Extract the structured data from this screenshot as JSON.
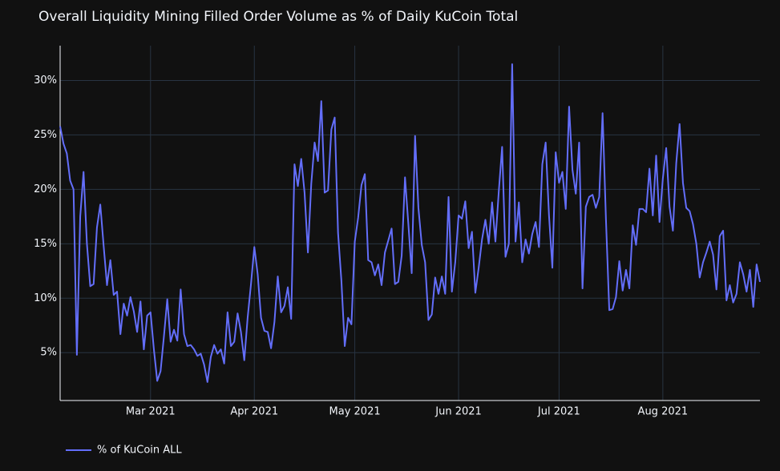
{
  "chart_data": {
    "type": "line",
    "title": "Overall Liquidity Mining Filled Order Volume as % of Daily KuCoin Total",
    "x": [
      "2021-02-02",
      "2021-02-03",
      "2021-02-04",
      "2021-02-05",
      "2021-02-06",
      "2021-02-07",
      "2021-02-08",
      "2021-02-09",
      "2021-02-10",
      "2021-02-11",
      "2021-02-12",
      "2021-02-13",
      "2021-02-14",
      "2021-02-15",
      "2021-02-16",
      "2021-02-17",
      "2021-02-18",
      "2021-02-19",
      "2021-02-20",
      "2021-02-21",
      "2021-02-22",
      "2021-02-23",
      "2021-02-24",
      "2021-02-25",
      "2021-02-26",
      "2021-02-27",
      "2021-02-28",
      "2021-03-01",
      "2021-03-02",
      "2021-03-03",
      "2021-03-04",
      "2021-03-05",
      "2021-03-06",
      "2021-03-07",
      "2021-03-08",
      "2021-03-09",
      "2021-03-10",
      "2021-03-11",
      "2021-03-12",
      "2021-03-13",
      "2021-03-14",
      "2021-03-15",
      "2021-03-16",
      "2021-03-17",
      "2021-03-18",
      "2021-03-19",
      "2021-03-20",
      "2021-03-21",
      "2021-03-22",
      "2021-03-23",
      "2021-03-24",
      "2021-03-25",
      "2021-03-26",
      "2021-03-27",
      "2021-03-28",
      "2021-03-29",
      "2021-03-30",
      "2021-03-31",
      "2021-04-01",
      "2021-04-02",
      "2021-04-03",
      "2021-04-04",
      "2021-04-05",
      "2021-04-06",
      "2021-04-07",
      "2021-04-08",
      "2021-04-09",
      "2021-04-10",
      "2021-04-11",
      "2021-04-12",
      "2021-04-13",
      "2021-04-14",
      "2021-04-15",
      "2021-04-16",
      "2021-04-17",
      "2021-04-18",
      "2021-04-19",
      "2021-04-20",
      "2021-04-21",
      "2021-04-22",
      "2021-04-23",
      "2021-04-24",
      "2021-04-25",
      "2021-04-26",
      "2021-04-27",
      "2021-04-28",
      "2021-04-29",
      "2021-04-30",
      "2021-05-01",
      "2021-05-02",
      "2021-05-03",
      "2021-05-04",
      "2021-05-05",
      "2021-05-06",
      "2021-05-07",
      "2021-05-08",
      "2021-05-09",
      "2021-05-10",
      "2021-05-11",
      "2021-05-12",
      "2021-05-13",
      "2021-05-14",
      "2021-05-15",
      "2021-05-16",
      "2021-05-17",
      "2021-05-18",
      "2021-05-19",
      "2021-05-20",
      "2021-05-21",
      "2021-05-22",
      "2021-05-23",
      "2021-05-24",
      "2021-05-25",
      "2021-05-26",
      "2021-05-27",
      "2021-05-28",
      "2021-05-29",
      "2021-05-30",
      "2021-05-31",
      "2021-06-01",
      "2021-06-02",
      "2021-06-03",
      "2021-06-04",
      "2021-06-05",
      "2021-06-06",
      "2021-06-07",
      "2021-06-08",
      "2021-06-09",
      "2021-06-10",
      "2021-06-11",
      "2021-06-12",
      "2021-06-13",
      "2021-06-14",
      "2021-06-15",
      "2021-06-16",
      "2021-06-17",
      "2021-06-18",
      "2021-06-19",
      "2021-06-20",
      "2021-06-21",
      "2021-06-22",
      "2021-06-23",
      "2021-06-24",
      "2021-06-25",
      "2021-06-26",
      "2021-06-27",
      "2021-06-28",
      "2021-06-29",
      "2021-06-30",
      "2021-07-01",
      "2021-07-02",
      "2021-07-03",
      "2021-07-04",
      "2021-07-05",
      "2021-07-06",
      "2021-07-07",
      "2021-07-08",
      "2021-07-09",
      "2021-07-10",
      "2021-07-11",
      "2021-07-12",
      "2021-07-13",
      "2021-07-14",
      "2021-07-15",
      "2021-07-16",
      "2021-07-17",
      "2021-07-18",
      "2021-07-19",
      "2021-07-20",
      "2021-07-21",
      "2021-07-22",
      "2021-07-23",
      "2021-07-24",
      "2021-07-25",
      "2021-07-26",
      "2021-07-27",
      "2021-07-28",
      "2021-07-29",
      "2021-07-30",
      "2021-07-31",
      "2021-08-01",
      "2021-08-02",
      "2021-08-03",
      "2021-08-04",
      "2021-08-05",
      "2021-08-06",
      "2021-08-07",
      "2021-08-08",
      "2021-08-09",
      "2021-08-10",
      "2021-08-11",
      "2021-08-12",
      "2021-08-13",
      "2021-08-14",
      "2021-08-15",
      "2021-08-16",
      "2021-08-17",
      "2021-08-18",
      "2021-08-19",
      "2021-08-20",
      "2021-08-21",
      "2021-08-22",
      "2021-08-23",
      "2021-08-24",
      "2021-08-25",
      "2021-08-26",
      "2021-08-27",
      "2021-08-28",
      "2021-08-29",
      "2021-08-30"
    ],
    "series": [
      {
        "name": "% of KuCoin ALL",
        "color": "#636efa",
        "values": [
          25.8,
          24.2,
          23.3,
          20.8,
          20.0,
          4.8,
          17.5,
          21.6,
          15.0,
          11.1,
          11.3,
          16.5,
          18.6,
          14.8,
          11.2,
          13.5,
          10.3,
          10.6,
          6.7,
          9.5,
          8.4,
          10.1,
          8.8,
          6.9,
          9.7,
          5.3,
          8.4,
          8.7,
          5.3,
          2.4,
          3.3,
          6.5,
          9.9,
          6.0,
          7.1,
          6.1,
          10.8,
          6.7,
          5.6,
          5.7,
          5.3,
          4.7,
          4.9,
          3.9,
          2.3,
          4.6,
          5.7,
          4.9,
          5.3,
          4.0,
          8.7,
          5.6,
          6.0,
          8.6,
          6.9,
          4.3,
          8.2,
          11.3,
          14.7,
          12.2,
          8.2,
          7.0,
          6.9,
          5.4,
          7.8,
          12.0,
          8.7,
          9.3,
          11.0,
          8.1,
          22.3,
          20.3,
          22.8,
          19.7,
          14.2,
          20.5,
          24.3,
          22.6,
          28.1,
          19.7,
          19.9,
          25.5,
          26.6,
          16.0,
          11.6,
          5.6,
          8.2,
          7.6,
          15.2,
          17.4,
          20.4,
          21.4,
          13.5,
          13.3,
          12.1,
          13.1,
          11.2,
          14.2,
          15.3,
          16.4,
          11.3,
          11.5,
          13.9,
          21.1,
          16.8,
          12.3,
          24.9,
          18.3,
          14.9,
          13.3,
          8.0,
          8.5,
          11.9,
          10.4,
          12.0,
          10.4,
          19.3,
          10.6,
          13.3,
          17.6,
          17.3,
          18.9,
          14.6,
          16.1,
          10.5,
          12.8,
          15.4,
          17.2,
          15.0,
          18.8,
          15.2,
          19.8,
          23.9,
          13.8,
          15.0,
          31.5,
          15.2,
          18.8,
          13.3,
          15.4,
          14.1,
          15.9,
          17.0,
          14.7,
          22.3,
          24.3,
          17.6,
          12.8,
          23.4,
          20.6,
          21.6,
          18.2,
          27.6,
          21.8,
          19.6,
          24.3,
          10.9,
          18.4,
          19.3,
          19.5,
          18.3,
          19.3,
          27.0,
          17.3,
          8.9,
          9.0,
          10.1,
          13.4,
          10.7,
          12.6,
          10.9,
          16.7,
          14.9,
          18.2,
          18.2,
          17.9,
          21.9,
          17.6,
          23.1,
          17.0,
          21.0,
          23.8,
          18.4,
          16.2,
          22.4,
          26.0,
          20.6,
          18.3,
          18.0,
          16.8,
          15.0,
          11.9,
          13.3,
          14.2,
          15.2,
          14.0,
          10.8,
          15.7,
          16.2,
          9.8,
          11.2,
          9.6,
          10.4,
          13.3,
          12.2,
          10.6,
          12.6,
          9.2,
          13.1,
          11.5
        ]
      }
    ],
    "xlim": [
      "2021-02-02",
      "2021-08-30"
    ],
    "xticks": [
      {
        "value": "2021-03-01",
        "label": "Mar 2021"
      },
      {
        "value": "2021-04-01",
        "label": "Apr 2021"
      },
      {
        "value": "2021-05-01",
        "label": "May 2021"
      },
      {
        "value": "2021-06-01",
        "label": "Jun 2021"
      },
      {
        "value": "2021-07-01",
        "label": "Jul 2021"
      },
      {
        "value": "2021-08-01",
        "label": "Aug 2021"
      }
    ],
    "ylim": [
      0.6,
      33.2
    ],
    "yticks": [
      {
        "value": 5,
        "label": "5%"
      },
      {
        "value": 10,
        "label": "10%"
      },
      {
        "value": 15,
        "label": "15%"
      },
      {
        "value": 20,
        "label": "20%"
      },
      {
        "value": 25,
        "label": "25%"
      },
      {
        "value": 30,
        "label": "30%"
      }
    ],
    "grid": true,
    "legend": "bottom-left"
  }
}
